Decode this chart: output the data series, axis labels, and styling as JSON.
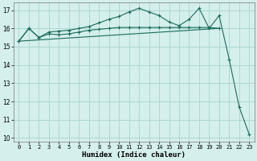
{
  "xlabel": "Humidex (Indice chaleur)",
  "background_color": "#d4efec",
  "grid_color": "#aed8d3",
  "line_color": "#1a6b5a",
  "xlim": [
    -0.5,
    23.5
  ],
  "ylim": [
    9.8,
    17.4
  ],
  "yticks": [
    10,
    11,
    12,
    13,
    14,
    15,
    16,
    17
  ],
  "xticks": [
    0,
    1,
    2,
    3,
    4,
    5,
    6,
    7,
    8,
    9,
    10,
    11,
    12,
    13,
    14,
    15,
    16,
    17,
    18,
    19,
    20,
    21,
    22,
    23
  ],
  "series1_x": [
    0,
    1,
    2,
    3,
    4,
    5,
    6,
    7,
    8,
    9,
    10,
    11,
    12,
    13,
    14,
    15,
    16,
    17,
    18,
    19,
    20
  ],
  "series1_y": [
    15.3,
    16.0,
    15.5,
    15.7,
    15.65,
    15.7,
    15.8,
    15.9,
    15.95,
    16.0,
    16.05,
    16.05,
    16.05,
    16.05,
    16.05,
    16.05,
    16.05,
    16.05,
    16.05,
    16.05,
    16.0
  ],
  "series2_x": [
    0,
    1,
    2,
    3,
    4,
    5,
    6,
    7,
    8,
    9,
    10,
    11,
    12,
    13,
    14,
    15,
    16,
    17,
    18,
    19,
    20,
    21,
    22,
    23
  ],
  "series2_y": [
    15.3,
    16.0,
    15.5,
    15.8,
    15.85,
    15.9,
    16.0,
    16.1,
    16.3,
    16.5,
    16.65,
    16.9,
    17.1,
    16.9,
    16.7,
    16.35,
    16.15,
    16.5,
    17.1,
    16.0,
    16.7,
    14.3,
    11.7,
    10.2
  ],
  "series3_x": [
    0,
    20
  ],
  "series3_y": [
    15.3,
    16.0
  ]
}
